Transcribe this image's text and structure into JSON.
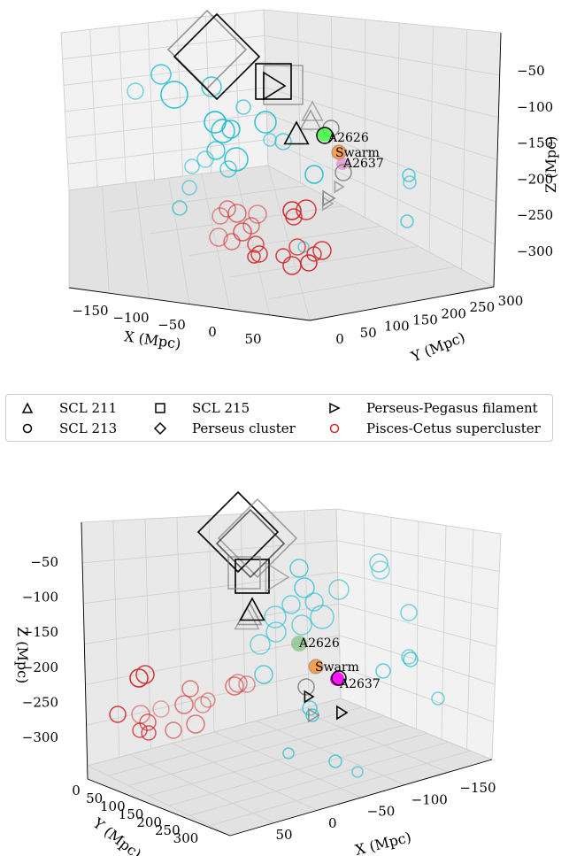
{
  "chart_data": [
    {
      "type": "scatter3d",
      "view": "top",
      "xlabel": "X (Mpc)",
      "ylabel": "Y (Mpc)",
      "zlabel": "Z (Mpc)",
      "xticks": [
        "−150",
        "−100",
        "−50",
        "0",
        "50"
      ],
      "yticks": [
        "0",
        "50",
        "100",
        "150",
        "200",
        "250",
        "300"
      ],
      "zticks": [
        "−50",
        "−100",
        "−150",
        "−200",
        "−250",
        "−300"
      ],
      "labels": [
        "A2626",
        "Swarm",
        "A2637"
      ]
    },
    {
      "type": "scatter3d",
      "view": "bottom",
      "xlabel": "X (Mpc)",
      "ylabel": "Y (Mpc)",
      "zlabel": "Z (Mpc)",
      "xticks": [
        "50",
        "0",
        "−50",
        "−100",
        "−150"
      ],
      "yticks": [
        "0",
        "50",
        "100",
        "150",
        "200",
        "250",
        "300"
      ],
      "zticks": [
        "−50",
        "−100",
        "−150",
        "−200",
        "−250",
        "−300"
      ],
      "labels": [
        "A2626",
        "Swarm",
        "A2637"
      ]
    }
  ],
  "legend": [
    {
      "label": "SCL 211",
      "marker": "triangle"
    },
    {
      "label": "SCL 215",
      "marker": "square"
    },
    {
      "label": "Perseus-Pegasus filament",
      "marker": "triangle-right"
    },
    {
      "label": "SCL 213",
      "marker": "circle"
    },
    {
      "label": "Perseus cluster",
      "marker": "diamond"
    },
    {
      "label": "Pisces-Cetus supercluster",
      "marker": "circle",
      "color": "#d62728"
    }
  ],
  "colors": {
    "cyan": "#17becf",
    "red": "#d62728",
    "gray": "#808080",
    "black": "#000000",
    "green": "#2ca02c",
    "orange": "#ff7f0e",
    "magenta": "#e377c2",
    "bright_green": "#33ff33",
    "bright_magenta": "#ff00ff"
  }
}
